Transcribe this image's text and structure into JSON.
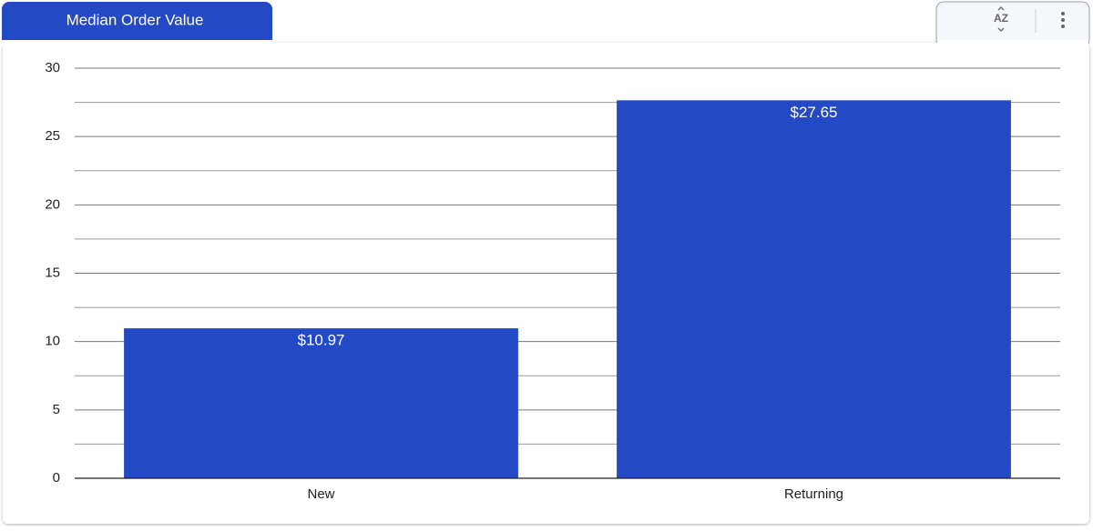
{
  "chart_data": {
    "type": "bar",
    "title": "Median Order Value",
    "categories": [
      "New",
      "Returning"
    ],
    "values": [
      10.97,
      27.65
    ],
    "value_labels": [
      "$10.97",
      "$27.65"
    ],
    "color": "#2349c4",
    "ylim": [
      0,
      30
    ],
    "yticks": [
      0,
      5,
      10,
      15,
      20,
      25,
      30
    ],
    "minor_yticks": [
      2.5,
      7.5,
      12.5,
      17.5,
      22.5,
      27.5
    ],
    "grid": true
  },
  "toolbar": {
    "sort_icon": "AZ"
  }
}
